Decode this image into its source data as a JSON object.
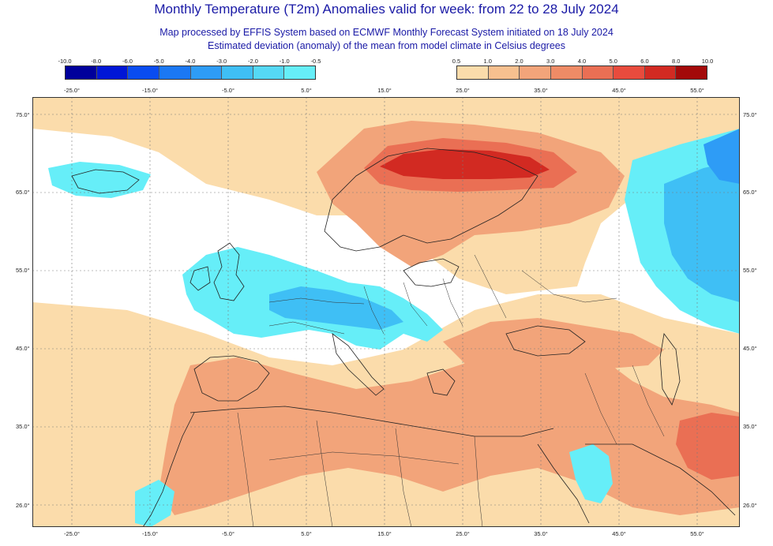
{
  "header": {
    "title": "Monthly Temperature (T2m) Anomalies valid for week: from 22 to 28 July 2024",
    "subtitle1": "Map processed by EFFIS System based on ECMWF Monthly Forecast System initiated on 18 July 2024",
    "subtitle2": "Estimated deviation (anomaly) of the mean from model climate in Celsius degrees"
  },
  "legend_cold": {
    "ticks": [
      "-10.0",
      "-8.0",
      "-6.0",
      "-5.0",
      "-4.0",
      "-3.0",
      "-2.0",
      "-1.0",
      "-0.5"
    ],
    "colors": [
      "#00009b",
      "#0016d6",
      "#0a4cf0",
      "#1b78f4",
      "#2e9cf6",
      "#3fbff5",
      "#55d8f5",
      "#66eef8"
    ]
  },
  "legend_warm": {
    "ticks": [
      "0.5",
      "1.0",
      "2.0",
      "3.0",
      "4.0",
      "5.0",
      "6.0",
      "8.0",
      "10.0"
    ],
    "colors": [
      "#fbdcab",
      "#f7c08f",
      "#f2a47a",
      "#ee8b66",
      "#ea6f54",
      "#e84b3d",
      "#d22a22",
      "#a30a0a"
    ]
  },
  "axes": {
    "lon_labels": [
      "-25.0°",
      "-15.0°",
      "-5.0°",
      "5.0°",
      "15.0°",
      "25.0°",
      "35.0°",
      "45.0°",
      "55.0°"
    ],
    "lat_labels": [
      "75.0°",
      "65.0°",
      "55.0°",
      "45.0°",
      "35.0°",
      "26.0°"
    ]
  },
  "map_colors": {
    "ocean_white": "#ffffff",
    "anomaly_warm_light": "#fbdcab",
    "anomaly_warm_mid": "#f2a47a",
    "anomaly_warm_strong": "#ea6f54",
    "anomaly_hot": "#d22a22",
    "anomaly_cold_light": "#66eef8",
    "anomaly_cold_mid": "#3fbff5",
    "anomaly_cold_strong": "#2e9cf6",
    "coastline": "#222222"
  }
}
